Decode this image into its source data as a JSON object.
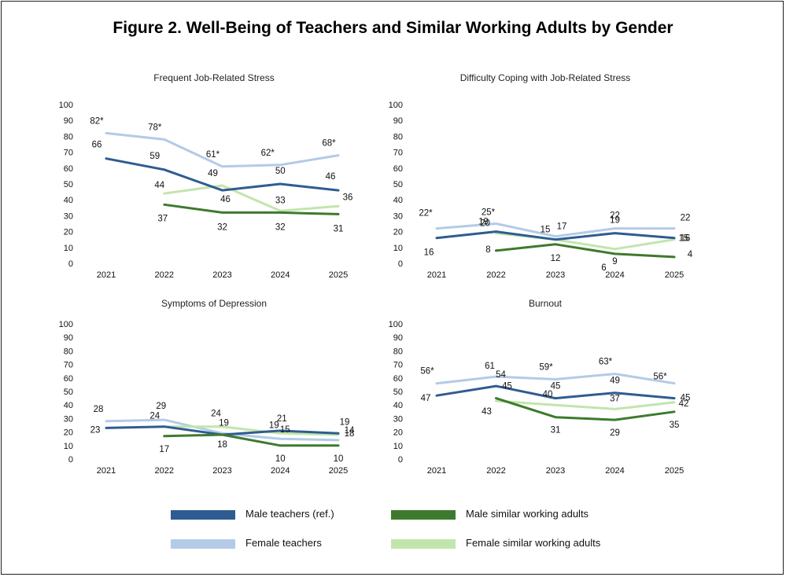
{
  "figure": {
    "title": "Figure 2. Well-Being of Teachers and Similar Working Adults by Gender"
  },
  "series_styles": [
    {
      "name": "Male teachers (ref.)",
      "color": "#2e5c92"
    },
    {
      "name": "Male similar working adults",
      "color": "#3d7a2d"
    },
    {
      "name": "Female teachers",
      "color": "#b3cbe6"
    },
    {
      "name": "Female similar working adults",
      "color": "#c2e5ad"
    }
  ],
  "legend": {
    "items": [
      {
        "label": "Male teachers (ref.)",
        "color": "#2e5c92"
      },
      {
        "label": "Male similar working adults",
        "color": "#3d7a2d"
      },
      {
        "label": "Female teachers",
        "color": "#b3cbe6"
      },
      {
        "label": "Female similar working adults",
        "color": "#c2e5ad"
      }
    ]
  },
  "chart_data": [
    {
      "type": "line",
      "title": "Frequent Job-Related Stress",
      "categories": [
        "2021",
        "2022",
        "2023",
        "2024",
        "2025"
      ],
      "ylim": [
        0,
        100
      ],
      "yticks": [
        0,
        10,
        20,
        30,
        40,
        50,
        60,
        70,
        80,
        90,
        100
      ],
      "grid": false,
      "series": [
        {
          "name": "Male teachers (ref.)",
          "values": [
            66,
            59,
            46,
            50,
            46
          ],
          "labels": [
            "66",
            "59",
            "46",
            "50",
            "46"
          ]
        },
        {
          "name": "Male similar working adults",
          "values": [
            null,
            37,
            32,
            32,
            31
          ],
          "labels": [
            "",
            "37",
            "32",
            "32",
            "31"
          ]
        },
        {
          "name": "Female teachers",
          "values": [
            82,
            78,
            61,
            62,
            68
          ],
          "labels": [
            "82*",
            "78*",
            "61*",
            "62*",
            "68*"
          ]
        },
        {
          "name": "Female similar working adults",
          "values": [
            null,
            44,
            49,
            33,
            36
          ],
          "labels": [
            "",
            "44",
            "49",
            "33",
            "36"
          ]
        }
      ]
    },
    {
      "type": "line",
      "title": "Difficulty Coping with Job-Related Stress",
      "categories": [
        "2021",
        "2022",
        "2023",
        "2024",
        "2025"
      ],
      "ylim": [
        0,
        100
      ],
      "yticks": [
        0,
        10,
        20,
        30,
        40,
        50,
        60,
        70,
        80,
        90,
        100
      ],
      "grid": false,
      "series": [
        {
          "name": "Male teachers (ref.)",
          "values": [
            16,
            20,
            15,
            19,
            16
          ],
          "labels": [
            "16",
            "20",
            "15",
            "19",
            "16"
          ]
        },
        {
          "name": "Male similar working adults",
          "values": [
            null,
            8,
            12,
            6,
            4
          ],
          "labels": [
            "",
            "8",
            "12",
            "6",
            "4"
          ]
        },
        {
          "name": "Female teachers",
          "values": [
            22,
            25,
            17,
            22,
            22
          ],
          "labels": [
            "22*",
            "25*",
            "17",
            "22",
            "22"
          ]
        },
        {
          "name": "Female similar working adults",
          "values": [
            null,
            19,
            15,
            9,
            15
          ],
          "labels": [
            "",
            "19",
            "",
            "9",
            "15"
          ]
        }
      ]
    },
    {
      "type": "line",
      "title": "Symptoms of Depression",
      "categories": [
        "2021",
        "2022",
        "2023",
        "2024",
        "2025"
      ],
      "ylim": [
        0,
        100
      ],
      "yticks": [
        0,
        10,
        20,
        30,
        40,
        50,
        60,
        70,
        80,
        90,
        100
      ],
      "grid": false,
      "series": [
        {
          "name": "Male teachers (ref.)",
          "values": [
            23,
            24,
            18,
            21,
            19
          ],
          "labels": [
            "23",
            "24",
            "18",
            "21",
            "19"
          ]
        },
        {
          "name": "Male similar working adults",
          "values": [
            null,
            17,
            18,
            10,
            10
          ],
          "labels": [
            "",
            "17",
            "",
            "10",
            "10"
          ]
        },
        {
          "name": "Female teachers",
          "values": [
            28,
            29,
            19,
            15,
            14
          ],
          "labels": [
            "28",
            "29",
            "19",
            "15",
            "14"
          ]
        },
        {
          "name": "Female similar working adults",
          "values": [
            null,
            24,
            24,
            19,
            18
          ],
          "labels": [
            "",
            "",
            "24",
            "19",
            "18"
          ]
        }
      ]
    },
    {
      "type": "line",
      "title": "Burnout",
      "categories": [
        "2021",
        "2022",
        "2023",
        "2024",
        "2025"
      ],
      "ylim": [
        0,
        100
      ],
      "yticks": [
        0,
        10,
        20,
        30,
        40,
        50,
        60,
        70,
        80,
        90,
        100
      ],
      "grid": false,
      "series": [
        {
          "name": "Male teachers (ref.)",
          "values": [
            47,
            54,
            45,
            49,
            45
          ],
          "labels": [
            "47",
            "54",
            "45",
            "49",
            "45"
          ]
        },
        {
          "name": "Male similar working adults",
          "values": [
            null,
            45,
            31,
            29,
            35
          ],
          "labels": [
            "",
            "45",
            "31",
            "29",
            "35"
          ]
        },
        {
          "name": "Female teachers",
          "values": [
            56,
            61,
            59,
            63,
            56
          ],
          "labels": [
            "56*",
            "61",
            "59*",
            "63*",
            "56*"
          ]
        },
        {
          "name": "Female similar working adults",
          "values": [
            null,
            43,
            40,
            37,
            42
          ],
          "labels": [
            "",
            "43",
            "40",
            "37",
            "42"
          ]
        }
      ]
    }
  ]
}
